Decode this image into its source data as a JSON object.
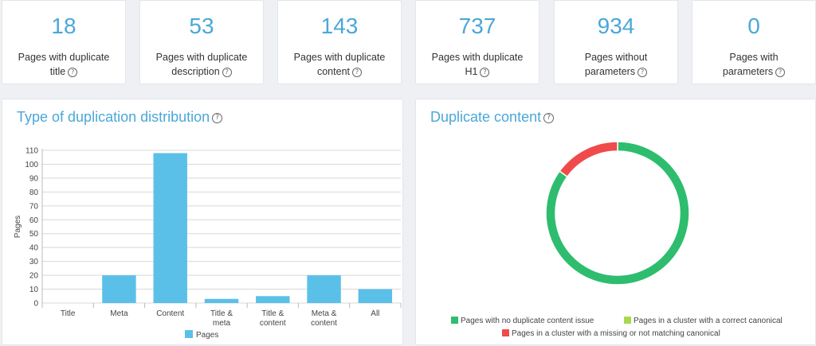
{
  "stats": [
    {
      "value": "18",
      "line1": "Pages with duplicate",
      "line2": "title"
    },
    {
      "value": "53",
      "line1": "Pages with duplicate",
      "line2": "description"
    },
    {
      "value": "143",
      "line1": "Pages with duplicate",
      "line2": "content"
    },
    {
      "value": "737",
      "line1": "Pages with duplicate",
      "line2": "H1"
    },
    {
      "value": "934",
      "line1": "Pages without",
      "line2": "parameters"
    },
    {
      "value": "0",
      "line1": "Pages with",
      "line2": "parameters"
    }
  ],
  "help_glyph": "?",
  "bar_panel": {
    "title": "Type of duplication distribution"
  },
  "donut_panel": {
    "title": "Duplicate content"
  },
  "chart_data": [
    {
      "type": "bar",
      "categories": [
        [
          "Title"
        ],
        [
          "Meta"
        ],
        [
          "Content"
        ],
        [
          "Title &",
          "meta"
        ],
        [
          "Title &",
          "content"
        ],
        [
          "Meta &",
          "content"
        ],
        [
          "All"
        ]
      ],
      "series": [
        {
          "name": "Pages",
          "values": [
            0,
            20,
            108,
            3,
            5,
            20,
            10
          ],
          "color": "#5bc0e8"
        }
      ],
      "ylabel": "Pages",
      "ylim": [
        0,
        110
      ],
      "yticks": [
        0,
        10,
        20,
        30,
        40,
        50,
        60,
        70,
        80,
        90,
        100,
        110
      ],
      "grid": true,
      "legend": "bottom"
    },
    {
      "type": "pie",
      "donut": true,
      "slices": [
        {
          "name": "Pages with no duplicate content issue",
          "value": 85,
          "color": "#2ebd6e"
        },
        {
          "name": "Pages in a cluster with a correct canonical",
          "value": 0,
          "color": "#a8d84e"
        },
        {
          "name": "Pages in a cluster with a missing or not matching canonical",
          "value": 15,
          "color": "#f04a4a"
        }
      ],
      "legend": "bottom"
    }
  ]
}
